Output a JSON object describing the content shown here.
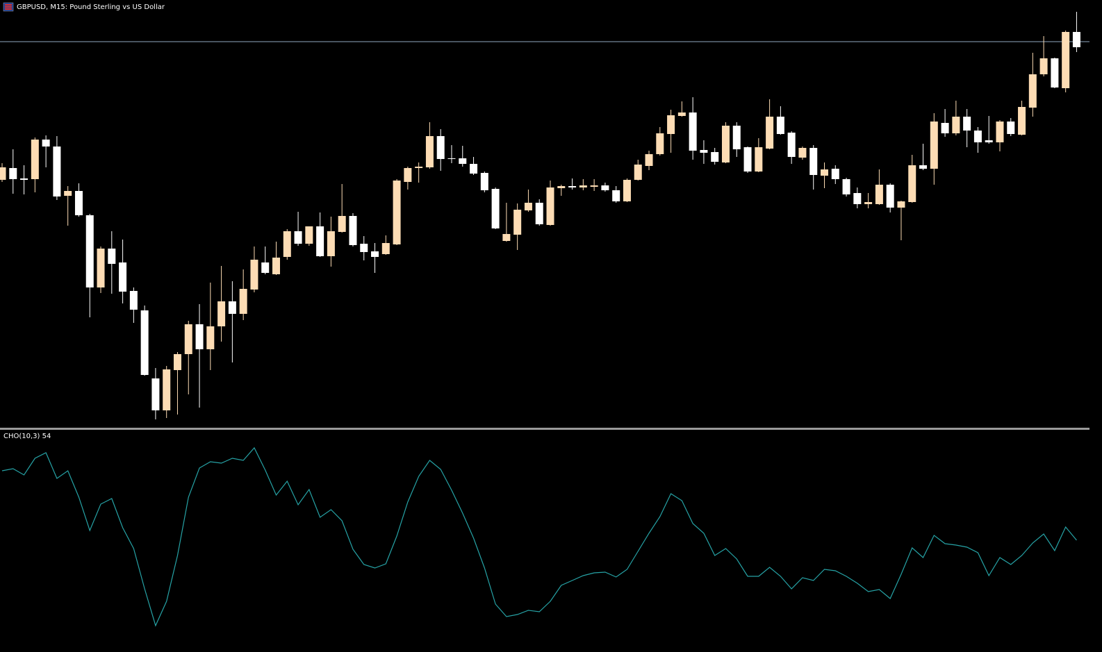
{
  "chart_data": [
    {
      "type": "candlestick",
      "title": "GBPUSD, M15:  Pound Sterling vs US Dollar",
      "up_color": "#fddcb4",
      "down_color": "#ffffff",
      "bid_line_color": "#8fa9bf",
      "ylim": [
        5,
        620
      ],
      "bid_line": 560,
      "open": [
        361,
        378,
        363,
        362,
        419,
        409,
        338,
        345,
        310,
        206,
        262,
        242,
        201,
        173,
        75,
        29,
        87,
        110,
        153,
        117,
        150,
        186,
        168,
        203,
        242,
        225,
        250,
        287,
        269,
        294,
        251,
        286,
        309,
        269,
        258,
        254,
        268,
        358,
        378,
        379,
        424,
        392,
        392,
        384,
        371,
        348,
        273,
        282,
        317,
        328,
        296,
        349,
        352,
        350,
        351,
        353,
        346,
        330,
        361,
        381,
        398,
        427,
        453,
        458,
        404,
        401,
        386,
        439,
        408,
        373,
        406,
        452,
        429,
        393,
        407,
        367,
        377,
        362,
        342,
        326,
        326,
        354,
        321,
        329,
        382,
        377,
        443,
        428,
        452,
        432,
        418,
        415,
        445,
        426,
        465,
        513,
        536,
        493,
        574
      ],
      "high": [
        385,
        405,
        382,
        422,
        425,
        424,
        352,
        356,
        312,
        265,
        287,
        275,
        206,
        180,
        90,
        93,
        113,
        158,
        182,
        213,
        237,
        215,
        232,
        265,
        265,
        272,
        290,
        315,
        294,
        314,
        308,
        355,
        313,
        280,
        270,
        281,
        362,
        380,
        386,
        444,
        434,
        411,
        410,
        394,
        373,
        350,
        328,
        327,
        347,
        333,
        360,
        354,
        363,
        362,
        362,
        357,
        352,
        363,
        390,
        403,
        437,
        462,
        474,
        480,
        418,
        407,
        444,
        444,
        409,
        421,
        477,
        467,
        431,
        409,
        411,
        386,
        382,
        364,
        350,
        342,
        376,
        356,
        331,
        397,
        413,
        457,
        463,
        475,
        463,
        437,
        453,
        447,
        450,
        475,
        544,
        568,
        537,
        576,
        603
      ],
      "low": [
        358,
        341,
        340,
        343,
        379,
        332,
        295,
        308,
        163,
        198,
        197,
        183,
        155,
        79,
        16,
        18,
        23,
        52,
        33,
        87,
        128,
        98,
        159,
        199,
        225,
        224,
        246,
        266,
        266,
        250,
        236,
        285,
        265,
        245,
        227,
        253,
        267,
        347,
        357,
        377,
        374,
        385,
        380,
        368,
        343,
        290,
        272,
        260,
        315,
        295,
        295,
        338,
        347,
        346,
        345,
        344,
        328,
        329,
        360,
        375,
        396,
        400,
        452,
        390,
        384,
        383,
        385,
        394,
        371,
        372,
        405,
        426,
        384,
        390,
        347,
        349,
        355,
        337,
        320,
        320,
        325,
        314,
        274,
        328,
        375,
        354,
        423,
        425,
        408,
        400,
        413,
        402,
        424,
        425,
        452,
        510,
        493,
        487,
        545
      ],
      "close": [
        379,
        362,
        361,
        419,
        409,
        337,
        345,
        310,
        206,
        262,
        240,
        200,
        174,
        80,
        29,
        88,
        110,
        153,
        117,
        150,
        186,
        168,
        204,
        246,
        227,
        249,
        287,
        269,
        294,
        251,
        287,
        309,
        267,
        257,
        250,
        270,
        360,
        378,
        380,
        424,
        391,
        391,
        384,
        370,
        346,
        291,
        283,
        318,
        328,
        297,
        350,
        352,
        350,
        353,
        353,
        346,
        330,
        361,
        383,
        398,
        428,
        454,
        458,
        403,
        400,
        387,
        439,
        405,
        373,
        408,
        452,
        427,
        394,
        407,
        368,
        376,
        362,
        340,
        326,
        329,
        354,
        321,
        330,
        382,
        377,
        445,
        428,
        452,
        432,
        415,
        415,
        445,
        427,
        466,
        513,
        536,
        494,
        574,
        552
      ]
    },
    {
      "type": "line",
      "label": "CHO(10,3) 54",
      "color": "#26a3a6",
      "ylim": [
        0,
        308
      ],
      "values": [
        250,
        253,
        244,
        268,
        276,
        239,
        250,
        212,
        164,
        202,
        210,
        168,
        138,
        80,
        27,
        62,
        128,
        212,
        254,
        263,
        261,
        268,
        265,
        283,
        251,
        215,
        235,
        201,
        223,
        183,
        194,
        178,
        137,
        115,
        110,
        116,
        156,
        205,
        242,
        265,
        252,
        222,
        189,
        153,
        110,
        58,
        40,
        43,
        49,
        47,
        62,
        85,
        92,
        99,
        103,
        104,
        97,
        108,
        134,
        160,
        184,
        217,
        207,
        174,
        160,
        128,
        138,
        123,
        98,
        98,
        111,
        98,
        80,
        96,
        92,
        108,
        106,
        98,
        88,
        76,
        79,
        66,
        101,
        139,
        125,
        157,
        145,
        143,
        140,
        132,
        99,
        125,
        115,
        128,
        146,
        159,
        135,
        169,
        150
      ]
    }
  ]
}
